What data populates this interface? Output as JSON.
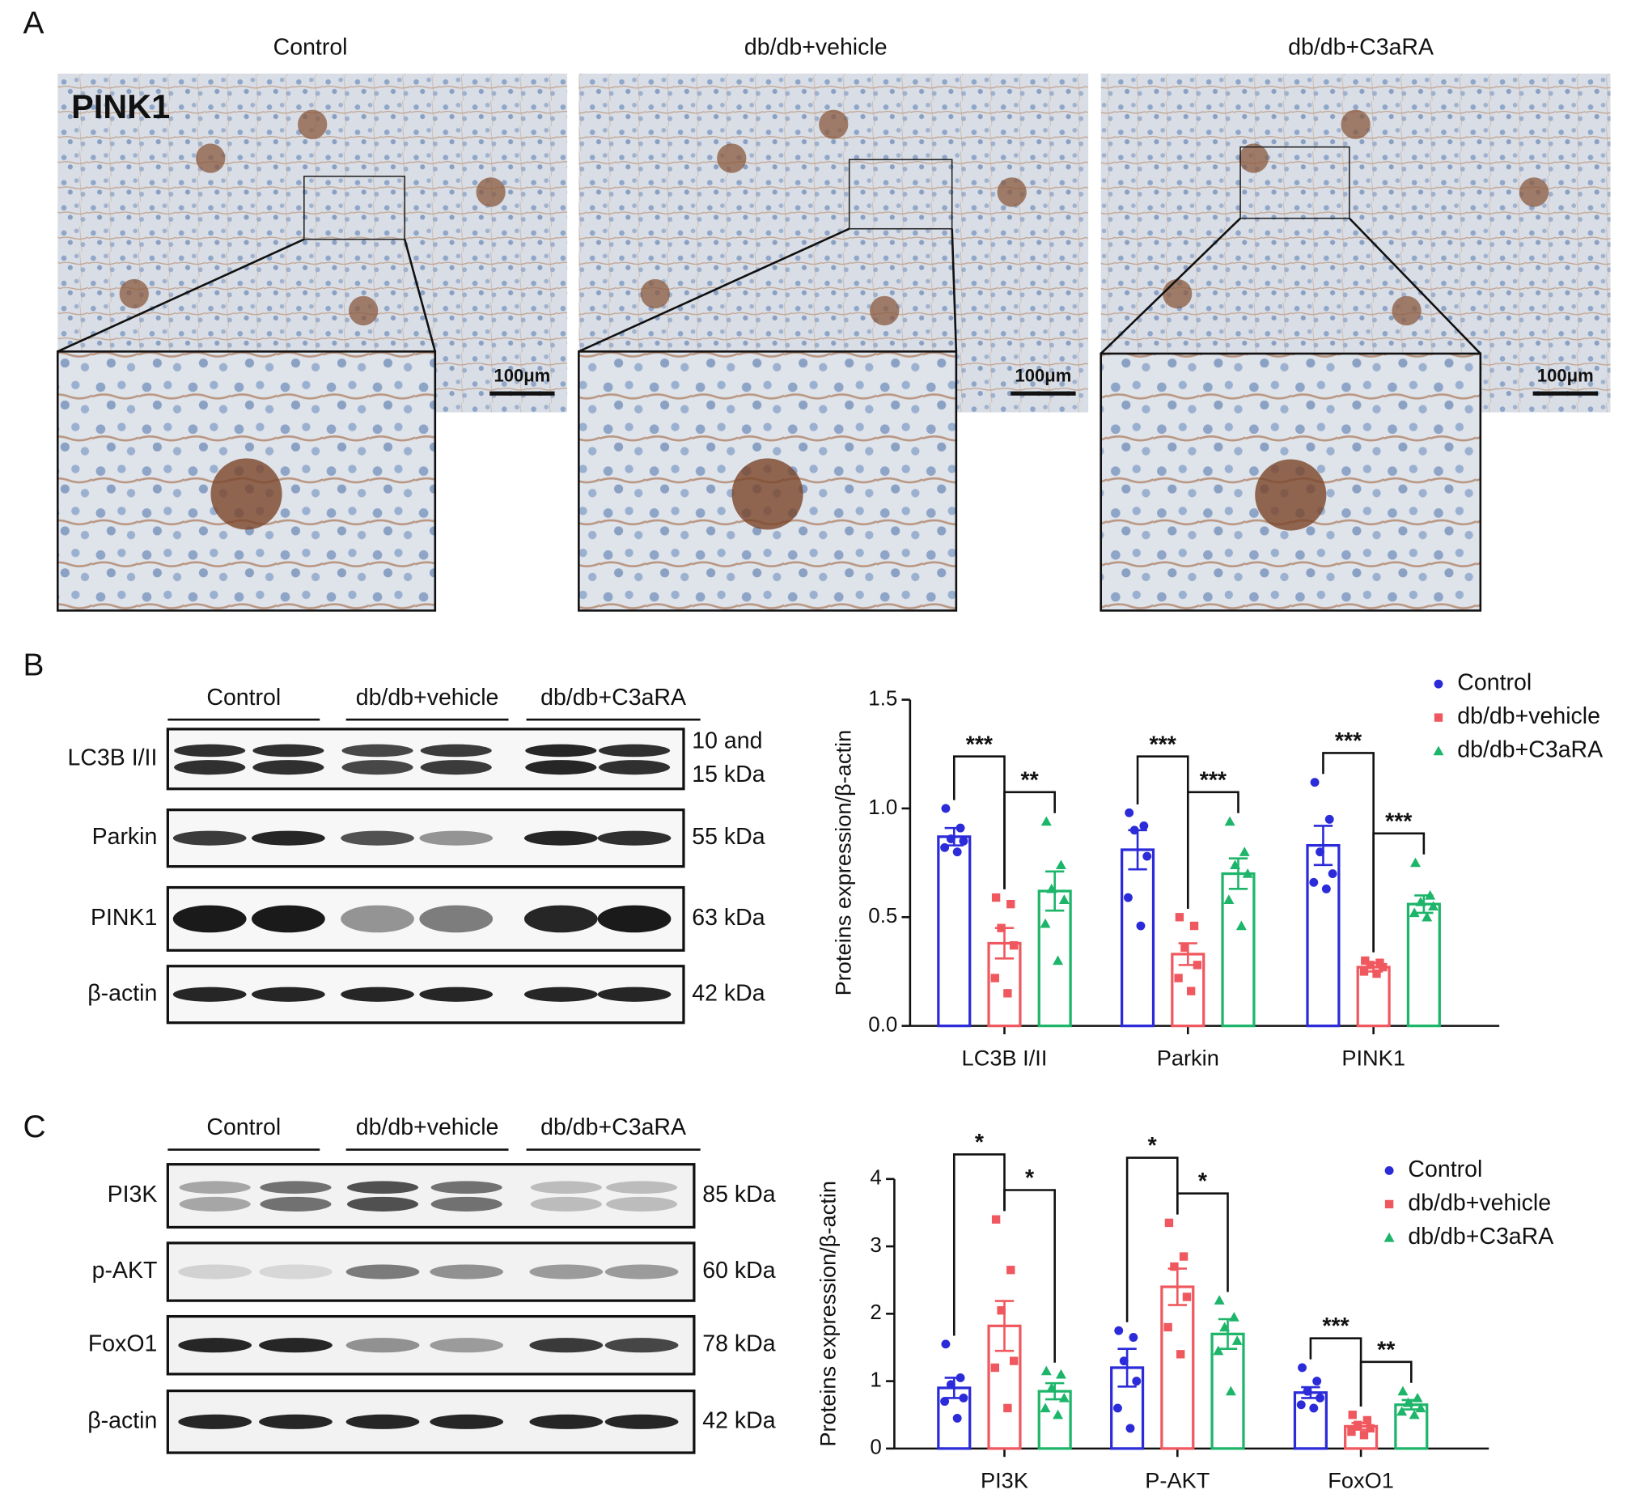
{
  "panel_labels": [
    "A",
    "B",
    "C"
  ],
  "histology": {
    "stain": "PINK1",
    "groups": [
      "Control",
      "db/db+vehicle",
      "db/db+C3aRA"
    ],
    "scale_bar": "100μm"
  },
  "blots": [
    {
      "groups": [
        "Control",
        "db/db+vehicle",
        "db/db+C3aRA"
      ],
      "rows": [
        {
          "protein": "LC3B I/II",
          "size": [
            "10 and",
            "15 kDa"
          ]
        },
        {
          "protein": "Parkin",
          "size": [
            "55 kDa"
          ]
        },
        {
          "protein": "PINK1",
          "size": [
            "63 kDa"
          ]
        },
        {
          "protein": "β-actin",
          "size": [
            "42 kDa"
          ]
        }
      ]
    },
    {
      "groups": [
        "Control",
        "db/db+vehicle",
        "db/db+C3aRA"
      ],
      "rows": [
        {
          "protein": "PI3K",
          "size": [
            "85 kDa"
          ]
        },
        {
          "protein": "p-AKT",
          "size": [
            "60 kDa"
          ]
        },
        {
          "protein": "FoxO1",
          "size": [
            "78 kDa"
          ]
        },
        {
          "protein": "β-actin",
          "size": [
            "42 kDa"
          ]
        }
      ]
    }
  ],
  "chart_data": [
    {
      "type": "bar",
      "ylabel": "Proteins expression/β-actin",
      "categories": [
        "LC3B I/II",
        "Parkin",
        "PINK1"
      ],
      "ylim": [
        0,
        1.5
      ],
      "yticks": [
        {
          "value": 0,
          "label": "0.0"
        },
        0.5,
        {
          "value": 1,
          "label": "1.0"
        },
        1.5
      ],
      "series": [
        {
          "name": "Control",
          "color": "#2b2bd9",
          "marker": "circle",
          "values": [
            0.87,
            0.81,
            0.83
          ],
          "errors": [
            0.04,
            0.09,
            0.09
          ],
          "points": [
            [
              1.0,
              0.91,
              0.86,
              0.85,
              0.82,
              0.8
            ],
            [
              0.98,
              0.92,
              0.9,
              0.78,
              0.59,
              0.46
            ],
            [
              1.12,
              0.95,
              0.8,
              0.7,
              0.66,
              0.63
            ]
          ]
        },
        {
          "name": "db/db+vehicle",
          "color": "#f0585f",
          "marker": "square",
          "values": [
            0.38,
            0.33,
            0.27
          ],
          "errors": [
            0.07,
            0.05,
            0.02
          ],
          "points": [
            [
              0.59,
              0.56,
              0.45,
              0.37,
              0.22,
              0.15
            ],
            [
              0.5,
              0.46,
              0.36,
              0.28,
              0.22,
              0.16
            ],
            [
              0.3,
              0.29,
              0.28,
              0.27,
              0.25,
              0.24
            ]
          ]
        },
        {
          "name": "db/db+C3aRA",
          "color": "#1db56a",
          "marker": "triangle",
          "values": [
            0.62,
            0.7,
            0.56
          ],
          "errors": [
            0.09,
            0.07,
            0.04
          ],
          "points": [
            [
              0.94,
              0.74,
              0.63,
              0.58,
              0.47,
              0.3
            ],
            [
              0.94,
              0.8,
              0.74,
              0.7,
              0.58,
              0.46
            ],
            [
              0.75,
              0.6,
              0.57,
              0.55,
              0.52,
              0.5
            ]
          ]
        }
      ],
      "significance": [
        [
          "***",
          "**"
        ],
        [
          "***",
          "***"
        ],
        [
          "***",
          "***"
        ]
      ],
      "legend": "upper right"
    },
    {
      "type": "bar",
      "ylabel": "Proteins expression/β-actin",
      "categories": [
        "PI3K",
        "P-AKT",
        "FoxO1"
      ],
      "ylim": [
        0,
        4
      ],
      "yticks": [
        0,
        1,
        2,
        3,
        4
      ],
      "series": [
        {
          "name": "Control",
          "color": "#2b2bd9",
          "marker": "circle",
          "values": [
            0.9,
            1.2,
            0.83
          ],
          "errors": [
            0.15,
            0.28,
            0.08
          ],
          "points": [
            [
              1.55,
              1.05,
              0.95,
              0.75,
              0.7,
              0.45
            ],
            [
              1.75,
              1.65,
              1.3,
              1.0,
              0.6,
              0.3
            ],
            [
              1.2,
              1.0,
              0.85,
              0.75,
              0.65,
              0.6
            ]
          ]
        },
        {
          "name": "db/db+vehicle",
          "color": "#f0585f",
          "marker": "square",
          "values": [
            1.82,
            2.4,
            0.33
          ],
          "errors": [
            0.37,
            0.27,
            0.05
          ],
          "points": [
            [
              3.4,
              2.65,
              2.05,
              1.3,
              1.2,
              0.6
            ],
            [
              3.35,
              2.85,
              2.7,
              2.25,
              1.8,
              1.4
            ],
            [
              0.5,
              0.42,
              0.35,
              0.3,
              0.25,
              0.2
            ]
          ]
        },
        {
          "name": "db/db+C3aRA",
          "color": "#1db56a",
          "marker": "triangle",
          "values": [
            0.85,
            1.7,
            0.65
          ],
          "errors": [
            0.12,
            0.22,
            0.07
          ],
          "points": [
            [
              1.15,
              1.1,
              0.9,
              0.75,
              0.6,
              0.5
            ],
            [
              2.2,
              1.95,
              1.8,
              1.6,
              1.45,
              0.85
            ],
            [
              0.85,
              0.75,
              0.68,
              0.6,
              0.55,
              0.5
            ]
          ]
        }
      ],
      "significance": [
        [
          "*",
          "*"
        ],
        [
          "*",
          "*"
        ],
        [
          "***",
          "**"
        ]
      ],
      "legend": "upper right"
    }
  ]
}
